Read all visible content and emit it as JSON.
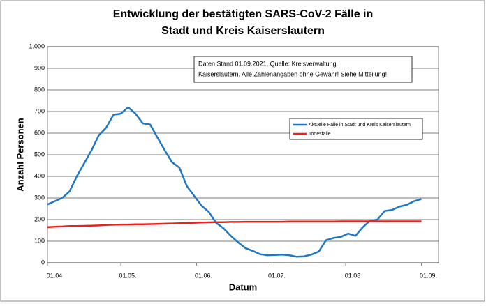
{
  "chart_data": {
    "type": "line",
    "title": [
      "Entwicklung der bestätigten SARS-CoV-2 Fälle in",
      "Stadt und Kreis Kaiserslautern"
    ],
    "xlabel": "Datum",
    "ylabel": "Anzahl Personen",
    "annotation": [
      "Daten Stand 01.09.2021, Quelle: Kreisverwaltung",
      "Kaiserslautern. Alle Zahlenangaben ohne Gewähr! Siehe Mitteilung!"
    ],
    "x": [
      "01.04",
      "04.04",
      "07.04",
      "10.04",
      "13.04",
      "16.04",
      "19.04",
      "22.04",
      "25.04",
      "28.04",
      "01.05",
      "04.05",
      "07.05",
      "10.05",
      "13.05",
      "16.05",
      "19.05",
      "22.05",
      "25.05",
      "28.05",
      "31.05",
      "03.06",
      "06.06",
      "09.06",
      "12.06",
      "15.06",
      "18.06",
      "21.06",
      "24.06",
      "27.06",
      "30.06",
      "03.07",
      "06.07",
      "09.07",
      "12.07",
      "15.07",
      "18.07",
      "21.07",
      "24.07",
      "27.07",
      "30.07",
      "02.08",
      "05.08",
      "08.08",
      "11.08",
      "14.08",
      "17.08",
      "20.08",
      "23.08",
      "26.08",
      "29.08",
      "01.09"
    ],
    "series": [
      {
        "name": "Aktuelle Fälle in Stadt und Kreis Kaiserslautern",
        "color": "#1f77c4",
        "values": [
          270,
          285,
          300,
          330,
          400,
          460,
          520,
          590,
          625,
          685,
          690,
          720,
          690,
          645,
          640,
          580,
          520,
          465,
          440,
          355,
          310,
          265,
          235,
          185,
          160,
          125,
          95,
          68,
          55,
          40,
          35,
          36,
          38,
          35,
          28,
          30,
          38,
          52,
          105,
          115,
          120,
          135,
          125,
          165,
          195,
          200,
          240,
          245,
          260,
          268,
          285,
          295
        ]
      },
      {
        "name": "Todesfälle",
        "color": "#e8231f",
        "values": [
          165,
          167,
          168,
          170,
          170,
          171,
          172,
          173,
          175,
          176,
          177,
          177,
          178,
          178,
          179,
          180,
          181,
          182,
          183,
          184,
          185,
          186,
          187,
          188,
          188,
          189,
          189,
          190,
          190,
          190,
          190,
          190,
          190,
          191,
          191,
          191,
          191,
          191,
          191,
          191,
          192,
          192,
          192,
          192,
          192,
          192,
          192,
          192,
          192,
          192,
          192,
          192
        ]
      }
    ],
    "xlim": [
      "01.04",
      "08.09"
    ],
    "xticks": [
      "01.04",
      {
        "value": "01.05",
        "label": "01.05."
      },
      {
        "value": "01.06",
        "label": "01.06."
      },
      {
        "value": "01.07",
        "label": "01.07."
      },
      "01.08",
      {
        "value": "01.09",
        "label": "01.09."
      }
    ],
    "ylim": [
      0,
      1000
    ],
    "yticks": [
      0,
      100,
      200,
      300,
      400,
      500,
      600,
      700,
      800,
      900,
      {
        "value": 1000,
        "label": "1.000"
      }
    ],
    "grid": true,
    "legend": "right"
  }
}
